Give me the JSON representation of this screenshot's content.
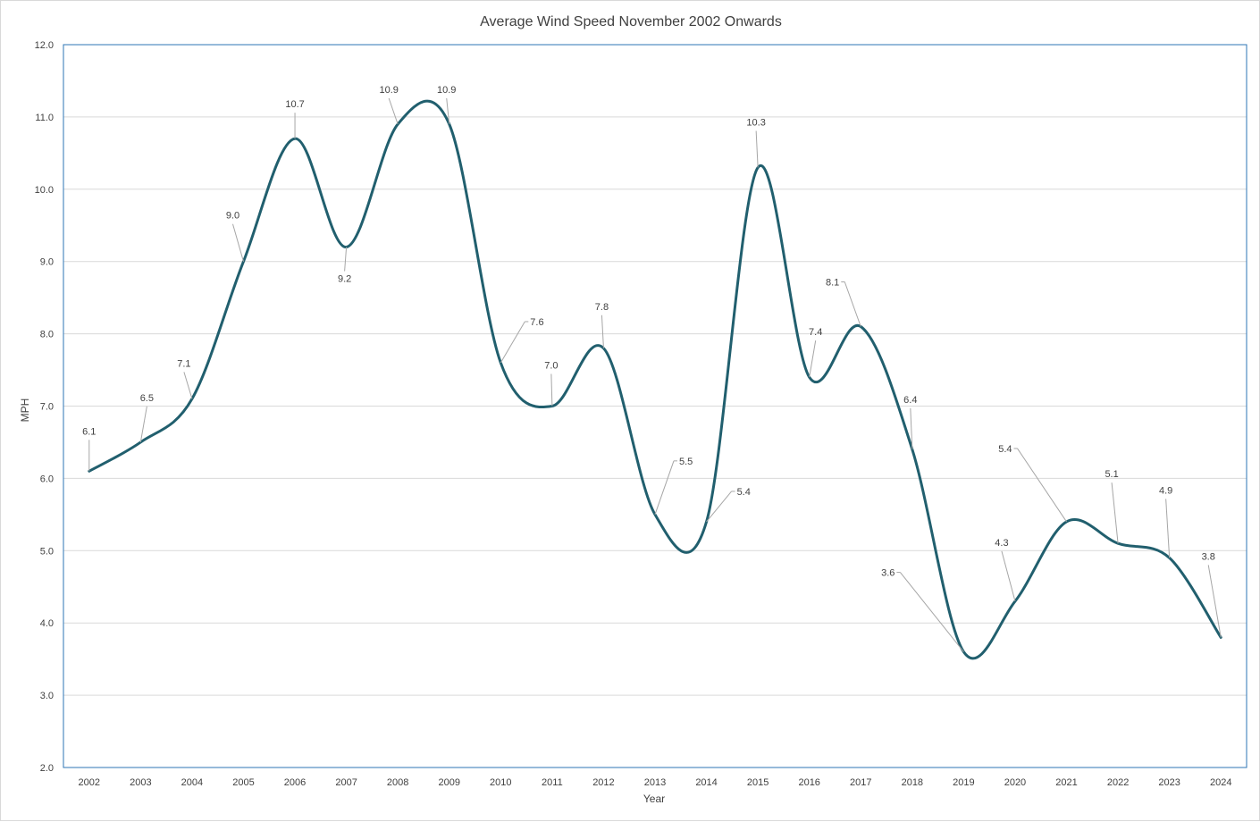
{
  "chart_data": {
    "type": "line",
    "title": "Average Wind Speed November 2002 Onwards",
    "xlabel": "Year",
    "ylabel": "MPH",
    "ylim": [
      2.0,
      12.0
    ],
    "ytick_step": 1.0,
    "smoothed": true,
    "grid": "horizontal",
    "line_color": "#215f6e",
    "categories": [
      "2002",
      "2003",
      "2004",
      "2005",
      "2006",
      "2007",
      "2008",
      "2009",
      "2010",
      "2011",
      "2012",
      "2013",
      "2014",
      "2015",
      "2016",
      "2017",
      "2018",
      "2019",
      "2020",
      "2021",
      "2022",
      "2023",
      "2024"
    ],
    "series": [
      {
        "values": [
          6.1,
          6.5,
          7.1,
          9.0,
          10.7,
          9.2,
          10.9,
          10.9,
          7.6,
          7.0,
          7.8,
          5.5,
          5.4,
          10.3,
          7.4,
          8.1,
          6.4,
          3.6,
          4.3,
          5.4,
          5.1,
          4.9,
          3.8
        ],
        "labels": [
          "6.1",
          "6.5",
          "7.1",
          "9.0",
          "10.7",
          "9.2",
          "10.9",
          "10.9",
          "7.6",
          "7.0",
          "7.8",
          "5.5",
          "5.4",
          "10.3",
          "7.4",
          "8.1",
          "6.4",
          "3.6",
          "4.3",
          "5.4",
          "5.1",
          "4.9",
          "3.8"
        ]
      }
    ]
  }
}
